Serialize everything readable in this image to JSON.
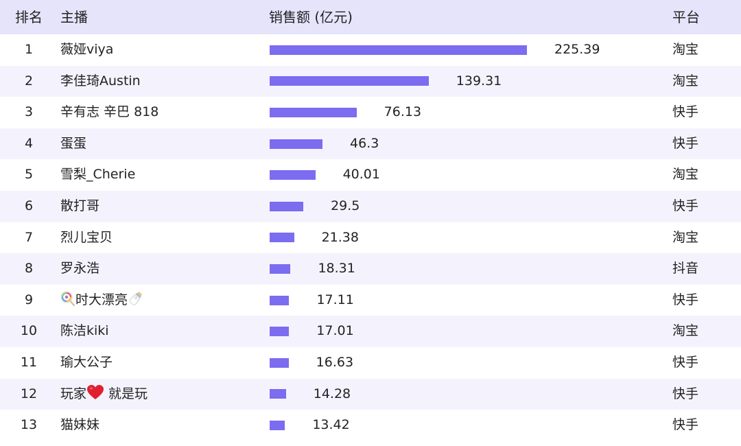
{
  "header": {
    "rank": "排名",
    "anchor": "主播",
    "sales": "销售额 (亿元)",
    "platform": "平台"
  },
  "chart_data": {
    "type": "bar",
    "orientation": "horizontal",
    "xlim": [
      0,
      225.39
    ],
    "rows": [
      {
        "rank": "1",
        "name": "薇娅viya",
        "value": 225.39,
        "value_label": "225.39",
        "platform": "淘宝"
      },
      {
        "rank": "2",
        "name": "李佳琦Austin",
        "value": 139.31,
        "value_label": "139.31",
        "platform": "淘宝"
      },
      {
        "rank": "3",
        "name": "辛有志 辛巴 818",
        "value": 76.13,
        "value_label": "76.13",
        "platform": "快手"
      },
      {
        "rank": "4",
        "name": "蛋蛋",
        "value": 46.3,
        "value_label": "46.3",
        "platform": "快手"
      },
      {
        "rank": "5",
        "name": "雪梨_Cherie",
        "value": 40.01,
        "value_label": "40.01",
        "platform": "淘宝"
      },
      {
        "rank": "6",
        "name": "散打哥",
        "value": 29.5,
        "value_label": "29.5",
        "platform": "快手"
      },
      {
        "rank": "7",
        "name": "烈儿宝贝",
        "value": 21.38,
        "value_label": "21.38",
        "platform": "淘宝"
      },
      {
        "rank": "8",
        "name": "罗永浩",
        "value": 18.31,
        "value_label": "18.31",
        "platform": "抖音"
      },
      {
        "rank": "9",
        "name": "时大漂亮",
        "name_prefix_icon": "lollipop-icon",
        "name_suffix_icon": "baby-bottle-icon",
        "value": 17.11,
        "value_label": "17.11",
        "platform": "快手"
      },
      {
        "rank": "10",
        "name": "陈洁kiki",
        "value": 17.01,
        "value_label": "17.01",
        "platform": "淘宝"
      },
      {
        "rank": "11",
        "name": "瑜大公子",
        "value": 16.63,
        "value_label": "16.63",
        "platform": "快手"
      },
      {
        "rank": "12",
        "name": "玩家",
        "name_mid_icon": "heart-icon",
        "name_after": " 就是玩",
        "value": 14.28,
        "value_label": "14.28",
        "platform": "快手"
      },
      {
        "rank": "13",
        "name": "猫妹妹",
        "value": 13.42,
        "value_label": "13.42",
        "platform": "快手"
      }
    ]
  },
  "colors": {
    "bar": "#7b6cf0",
    "header_bg": "#e6e4fb",
    "row_alt_bg": "#f4f3fd"
  }
}
